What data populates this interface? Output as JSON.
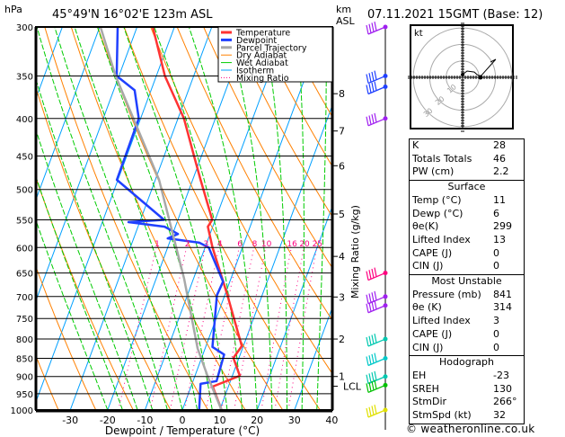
{
  "header": {
    "hpa_label": "hPa",
    "location": "45°49'N  16°02'E  123m  ASL",
    "km_label": "km",
    "asl_label": "ASL",
    "datetime": "07.11.2021  15GMT  (Base: 12)"
  },
  "chart_data": {
    "type": "line",
    "title": "45°49'N 16°02'E 123m ASL",
    "xlabel": "Dewpoint / Temperature (°C)",
    "ylabel": "hPa",
    "y2label": "Mixing Ratio (g/kg)",
    "xlim": [
      -40,
      40
    ],
    "ylim": [
      1000,
      300
    ],
    "x_ticks": [
      -30,
      -20,
      -10,
      0,
      10,
      20,
      30,
      40
    ],
    "pressure_ticks": [
      300,
      350,
      400,
      450,
      500,
      550,
      600,
      650,
      700,
      750,
      800,
      850,
      900,
      950,
      1000
    ],
    "km_ticks": [
      {
        "label": "8",
        "p": 370
      },
      {
        "label": "7",
        "p": 416
      },
      {
        "label": "6",
        "p": 464
      },
      {
        "label": "5",
        "p": 540
      },
      {
        "label": "4",
        "p": 617
      },
      {
        "label": "3",
        "p": 701
      },
      {
        "label": "2",
        "p": 800
      },
      {
        "label": "1",
        "p": 900
      },
      {
        "label": "LCL",
        "p": 928
      }
    ],
    "mixing_ratio_labels": [
      "1",
      "2",
      "3",
      "4",
      "6",
      "8",
      "10",
      "16",
      "20",
      "25"
    ],
    "mixing_ratio_values": [
      1,
      2,
      3,
      4,
      6,
      8,
      10,
      16,
      20,
      25
    ],
    "legend": [
      {
        "label": "Temperature",
        "color": "#ff3333",
        "style": "thick"
      },
      {
        "label": "Dewpoint",
        "color": "#2040ff",
        "style": "thick"
      },
      {
        "label": "Parcel Trajectory",
        "color": "#a8a8a8",
        "style": "thick"
      },
      {
        "label": "Dry Adiabat",
        "color": "#ff8000",
        "style": "thin"
      },
      {
        "label": "Wet Adiabat",
        "color": "#00cc00",
        "style": "thin"
      },
      {
        "label": "Isotherm",
        "color": "#00a0ff",
        "style": "thin"
      },
      {
        "label": "Mixing Ratio",
        "color": "#ff0080",
        "style": "dotted"
      }
    ],
    "series": [
      {
        "name": "Temperature",
        "color": "#ff3333",
        "points": [
          [
            1000,
            10.5
          ],
          [
            929,
            5.8
          ],
          [
            898,
            12
          ],
          [
            849,
            8.5
          ],
          [
            818,
            9.6
          ],
          [
            697,
            0.7
          ],
          [
            600,
            -8
          ],
          [
            562,
            -11.3
          ],
          [
            550,
            -10.8
          ],
          [
            485,
            -17.9
          ],
          [
            450,
            -22
          ],
          [
            400,
            -28.4
          ],
          [
            350,
            -37.7
          ],
          [
            300,
            -45.8
          ]
        ]
      },
      {
        "name": "Dewpoint",
        "color": "#2040ff",
        "points": [
          [
            1000,
            4.5
          ],
          [
            921,
            2.3
          ],
          [
            913,
            6.3
          ],
          [
            840,
            5.7
          ],
          [
            820,
            1.8
          ],
          [
            697,
            -2.1
          ],
          [
            668,
            -1.8
          ],
          [
            600,
            -9
          ],
          [
            591,
            -12
          ],
          [
            583,
            -20.9
          ],
          [
            575,
            -18.6
          ],
          [
            562,
            -22.9
          ],
          [
            554,
            -33
          ],
          [
            550,
            -23.7
          ],
          [
            485,
            -40.3
          ],
          [
            400,
            -40.5
          ],
          [
            366,
            -44.4
          ],
          [
            350,
            -50.6
          ],
          [
            300,
            -55.2
          ]
        ]
      },
      {
        "name": "Parcel Trajectory",
        "color": "#a8a8a8",
        "points": [
          [
            1000,
            10.5
          ],
          [
            903,
            3.7
          ],
          [
            824,
            -2
          ],
          [
            662,
            -12.5
          ],
          [
            485,
            -29
          ],
          [
            350,
            -50.9
          ],
          [
            300,
            -59.8
          ]
        ]
      }
    ]
  },
  "wind_barbs": [
    {
      "p": 300,
      "color": "#a020f0"
    },
    {
      "p": 350,
      "color": "#2040ff"
    },
    {
      "p": 362,
      "color": "#2040ff"
    },
    {
      "p": 400,
      "color": "#a020f0"
    },
    {
      "p": 650,
      "color": "#ff0080"
    },
    {
      "p": 700,
      "color": "#a020f0"
    },
    {
      "p": 720,
      "color": "#a020f0"
    },
    {
      "p": 800,
      "color": "#00c8b0"
    },
    {
      "p": 850,
      "color": "#00c8c8"
    },
    {
      "p": 900,
      "color": "#00c8b0"
    },
    {
      "p": 925,
      "color": "#00c000"
    },
    {
      "p": 1000,
      "color": "#e0e000"
    }
  ],
  "hodograph": {
    "unit_label": "kt",
    "ring_labels": [
      "10",
      "20",
      "30"
    ],
    "trace_kt": [
      [
        0,
        1.7
      ],
      [
        2.8,
        3.9
      ],
      [
        7.2,
        3.3
      ],
      [
        8.9,
        1.7
      ],
      [
        11.1,
        0.6
      ],
      [
        20.5,
        11.1
      ],
      [
        17.2,
        9.4
      ]
    ],
    "storm_motion_kt": [
      11.1,
      0
    ]
  },
  "indices": {
    "general": [
      {
        "k": "K",
        "v": "28"
      },
      {
        "k": "Totals Totals",
        "v": "46"
      },
      {
        "k": "PW (cm)",
        "v": "2.2"
      }
    ],
    "surface": {
      "title": "Surface",
      "rows": [
        {
          "k": "Temp (°C)",
          "v": "11"
        },
        {
          "k": "Dewp (°C)",
          "v": "6"
        },
        {
          "k": "θe(K)",
          "v": "299"
        },
        {
          "k": "Lifted Index",
          "v": "13"
        },
        {
          "k": "CAPE (J)",
          "v": "0"
        },
        {
          "k": "CIN (J)",
          "v": "0"
        }
      ]
    },
    "most_unstable": {
      "title": "Most Unstable",
      "rows": [
        {
          "k": "Pressure (mb)",
          "v": "841"
        },
        {
          "k": "θe (K)",
          "v": "314"
        },
        {
          "k": "Lifted Index",
          "v": "3"
        },
        {
          "k": "CAPE (J)",
          "v": "0"
        },
        {
          "k": "CIN (J)",
          "v": "0"
        }
      ]
    },
    "hodograph": {
      "title": "Hodograph",
      "rows": [
        {
          "k": "EH",
          "v": "-23"
        },
        {
          "k": "SREH",
          "v": "130"
        },
        {
          "k": "StmDir",
          "v": "266°"
        },
        {
          "k": "StmSpd (kt)",
          "v": "32"
        }
      ]
    }
  },
  "footer": "© weatheronline.co.uk"
}
